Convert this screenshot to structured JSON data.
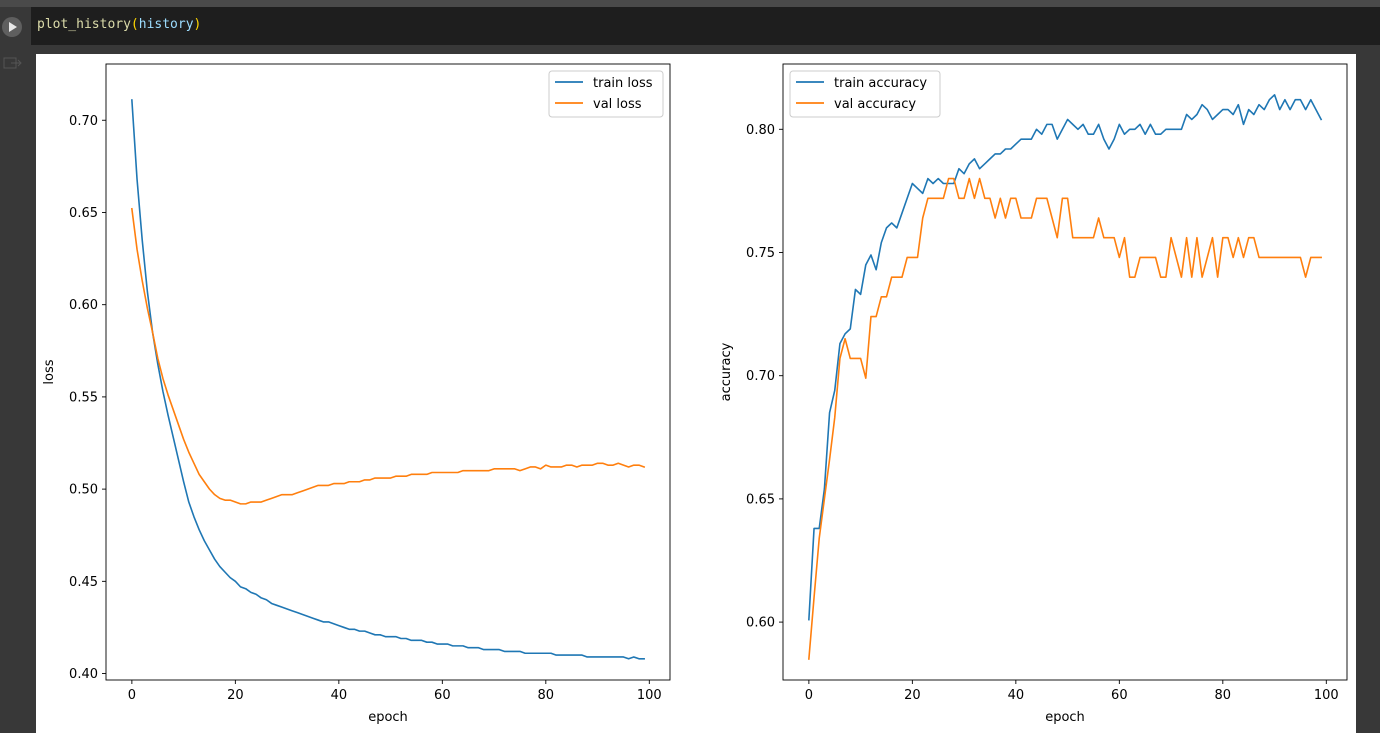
{
  "cell": {
    "code_fn": "plot_history",
    "code_arg": "history",
    "run_icon": "play-icon",
    "output_icon": "output-arrow-icon"
  },
  "colors": {
    "train": "#1f77b4",
    "val": "#ff7f0e",
    "editor_bg": "#1e1e1e",
    "page_bg": "#383838"
  },
  "chart_data": [
    {
      "type": "line",
      "xlabel": "epoch",
      "ylabel": "loss",
      "xlim": [
        -5,
        104
      ],
      "ylim": [
        0.3965,
        0.7305
      ],
      "xticks": [
        0,
        20,
        40,
        60,
        80,
        100
      ],
      "yticks": [
        0.4,
        0.45,
        0.5,
        0.55,
        0.6,
        0.65,
        0.7
      ],
      "ytick_labels": [
        "0.40",
        "0.45",
        "0.50",
        "0.55",
        "0.60",
        "0.65",
        "0.70"
      ],
      "legend": "top-right",
      "grid": false,
      "x": [
        0,
        1,
        2,
        3,
        4,
        5,
        6,
        7,
        8,
        9,
        10,
        11,
        12,
        13,
        14,
        15,
        16,
        17,
        18,
        19,
        20,
        21,
        22,
        23,
        24,
        25,
        26,
        27,
        28,
        29,
        30,
        31,
        32,
        33,
        34,
        35,
        36,
        37,
        38,
        39,
        40,
        41,
        42,
        43,
        44,
        45,
        46,
        47,
        48,
        49,
        50,
        51,
        52,
        53,
        54,
        55,
        56,
        57,
        58,
        59,
        60,
        61,
        62,
        63,
        64,
        65,
        66,
        67,
        68,
        69,
        70,
        71,
        72,
        73,
        74,
        75,
        76,
        77,
        78,
        79,
        80,
        81,
        82,
        83,
        84,
        85,
        86,
        87,
        88,
        89,
        90,
        91,
        92,
        93,
        94,
        95,
        96,
        97,
        98,
        99
      ],
      "series": [
        {
          "name": "train loss",
          "values": [
            0.711,
            0.668,
            0.635,
            0.607,
            0.585,
            0.568,
            0.553,
            0.54,
            0.528,
            0.516,
            0.504,
            0.493,
            0.485,
            0.478,
            0.472,
            0.467,
            0.462,
            0.458,
            0.455,
            0.452,
            0.45,
            0.447,
            0.446,
            0.444,
            0.443,
            0.441,
            0.44,
            0.438,
            0.437,
            0.436,
            0.435,
            0.434,
            0.433,
            0.432,
            0.431,
            0.43,
            0.429,
            0.428,
            0.428,
            0.427,
            0.426,
            0.425,
            0.424,
            0.424,
            0.423,
            0.423,
            0.422,
            0.421,
            0.421,
            0.42,
            0.42,
            0.42,
            0.419,
            0.419,
            0.418,
            0.418,
            0.418,
            0.417,
            0.417,
            0.416,
            0.416,
            0.416,
            0.415,
            0.415,
            0.415,
            0.414,
            0.414,
            0.414,
            0.413,
            0.413,
            0.413,
            0.413,
            0.412,
            0.412,
            0.412,
            0.412,
            0.411,
            0.411,
            0.411,
            0.411,
            0.411,
            0.411,
            0.41,
            0.41,
            0.41,
            0.41,
            0.41,
            0.41,
            0.409,
            0.409,
            0.409,
            0.409,
            0.409,
            0.409,
            0.409,
            0.409,
            0.408,
            0.409,
            0.408,
            0.408
          ]
        },
        {
          "name": "val loss",
          "values": [
            0.652,
            0.63,
            0.613,
            0.598,
            0.585,
            0.571,
            0.56,
            0.551,
            0.543,
            0.535,
            0.527,
            0.52,
            0.514,
            0.508,
            0.504,
            0.5,
            0.497,
            0.495,
            0.494,
            0.494,
            0.493,
            0.492,
            0.492,
            0.493,
            0.493,
            0.493,
            0.494,
            0.495,
            0.496,
            0.497,
            0.497,
            0.497,
            0.498,
            0.499,
            0.5,
            0.501,
            0.502,
            0.502,
            0.502,
            0.503,
            0.503,
            0.503,
            0.504,
            0.504,
            0.504,
            0.505,
            0.505,
            0.506,
            0.506,
            0.506,
            0.506,
            0.507,
            0.507,
            0.507,
            0.508,
            0.508,
            0.508,
            0.508,
            0.509,
            0.509,
            0.509,
            0.509,
            0.509,
            0.509,
            0.51,
            0.51,
            0.51,
            0.51,
            0.51,
            0.51,
            0.511,
            0.511,
            0.511,
            0.511,
            0.511,
            0.51,
            0.511,
            0.512,
            0.512,
            0.511,
            0.513,
            0.512,
            0.512,
            0.512,
            0.513,
            0.513,
            0.512,
            0.513,
            0.513,
            0.513,
            0.514,
            0.514,
            0.513,
            0.513,
            0.514,
            0.513,
            0.512,
            0.513,
            0.513,
            0.512
          ]
        }
      ]
    },
    {
      "type": "line",
      "xlabel": "epoch",
      "ylabel": "accuracy",
      "xlim": [
        -5,
        104
      ],
      "ylim": [
        0.5765,
        0.8265
      ],
      "xticks": [
        0,
        20,
        40,
        60,
        80,
        100
      ],
      "yticks": [
        0.6,
        0.65,
        0.7,
        0.75,
        0.8
      ],
      "ytick_labels": [
        "0.60",
        "0.65",
        "0.70",
        "0.75",
        "0.80"
      ],
      "legend": "top-left",
      "grid": false,
      "x": [
        0,
        1,
        2,
        3,
        4,
        5,
        6,
        7,
        8,
        9,
        10,
        11,
        12,
        13,
        14,
        15,
        16,
        17,
        18,
        19,
        20,
        21,
        22,
        23,
        24,
        25,
        26,
        27,
        28,
        29,
        30,
        31,
        32,
        33,
        34,
        35,
        36,
        37,
        38,
        39,
        40,
        41,
        42,
        43,
        44,
        45,
        46,
        47,
        48,
        49,
        50,
        51,
        52,
        53,
        54,
        55,
        56,
        57,
        58,
        59,
        60,
        61,
        62,
        63,
        64,
        65,
        66,
        67,
        68,
        69,
        70,
        71,
        72,
        73,
        74,
        75,
        76,
        77,
        78,
        79,
        80,
        81,
        82,
        83,
        84,
        85,
        86,
        87,
        88,
        89,
        90,
        91,
        92,
        93,
        94,
        95,
        96,
        97,
        98,
        99
      ],
      "series": [
        {
          "name": "train accuracy",
          "values": [
            0.601,
            0.638,
            0.638,
            0.654,
            0.685,
            0.694,
            0.713,
            0.717,
            0.719,
            0.735,
            0.733,
            0.745,
            0.749,
            0.743,
            0.754,
            0.76,
            0.762,
            0.76,
            0.766,
            0.772,
            0.778,
            0.776,
            0.774,
            0.78,
            0.778,
            0.78,
            0.778,
            0.778,
            0.778,
            0.784,
            0.782,
            0.786,
            0.788,
            0.784,
            0.786,
            0.788,
            0.79,
            0.79,
            0.792,
            0.792,
            0.794,
            0.796,
            0.796,
            0.796,
            0.8,
            0.798,
            0.802,
            0.802,
            0.796,
            0.8,
            0.804,
            0.802,
            0.8,
            0.802,
            0.798,
            0.798,
            0.802,
            0.796,
            0.792,
            0.796,
            0.802,
            0.798,
            0.8,
            0.8,
            0.802,
            0.798,
            0.802,
            0.798,
            0.798,
            0.8,
            0.8,
            0.8,
            0.8,
            0.806,
            0.804,
            0.806,
            0.81,
            0.808,
            0.804,
            0.806,
            0.808,
            0.808,
            0.806,
            0.81,
            0.802,
            0.808,
            0.806,
            0.81,
            0.808,
            0.812,
            0.814,
            0.808,
            0.812,
            0.808,
            0.812,
            0.812,
            0.808,
            0.812,
            0.808,
            0.804
          ]
        },
        {
          "name": "val accuracy",
          "values": [
            0.585,
            0.61,
            0.634,
            0.65,
            0.666,
            0.683,
            0.707,
            0.715,
            0.707,
            0.707,
            0.707,
            0.699,
            0.724,
            0.724,
            0.732,
            0.732,
            0.74,
            0.74,
            0.74,
            0.748,
            0.748,
            0.748,
            0.764,
            0.772,
            0.772,
            0.772,
            0.772,
            0.78,
            0.78,
            0.772,
            0.772,
            0.78,
            0.772,
            0.78,
            0.772,
            0.772,
            0.764,
            0.772,
            0.764,
            0.772,
            0.772,
            0.764,
            0.764,
            0.764,
            0.772,
            0.772,
            0.772,
            0.764,
            0.756,
            0.772,
            0.772,
            0.756,
            0.756,
            0.756,
            0.756,
            0.756,
            0.764,
            0.756,
            0.756,
            0.756,
            0.748,
            0.756,
            0.74,
            0.74,
            0.748,
            0.748,
            0.748,
            0.748,
            0.74,
            0.74,
            0.756,
            0.748,
            0.74,
            0.756,
            0.74,
            0.756,
            0.74,
            0.748,
            0.756,
            0.74,
            0.756,
            0.756,
            0.748,
            0.756,
            0.748,
            0.756,
            0.756,
            0.748,
            0.748,
            0.748,
            0.748,
            0.748,
            0.748,
            0.748,
            0.748,
            0.748,
            0.74,
            0.748,
            0.748,
            0.748
          ]
        }
      ]
    }
  ]
}
